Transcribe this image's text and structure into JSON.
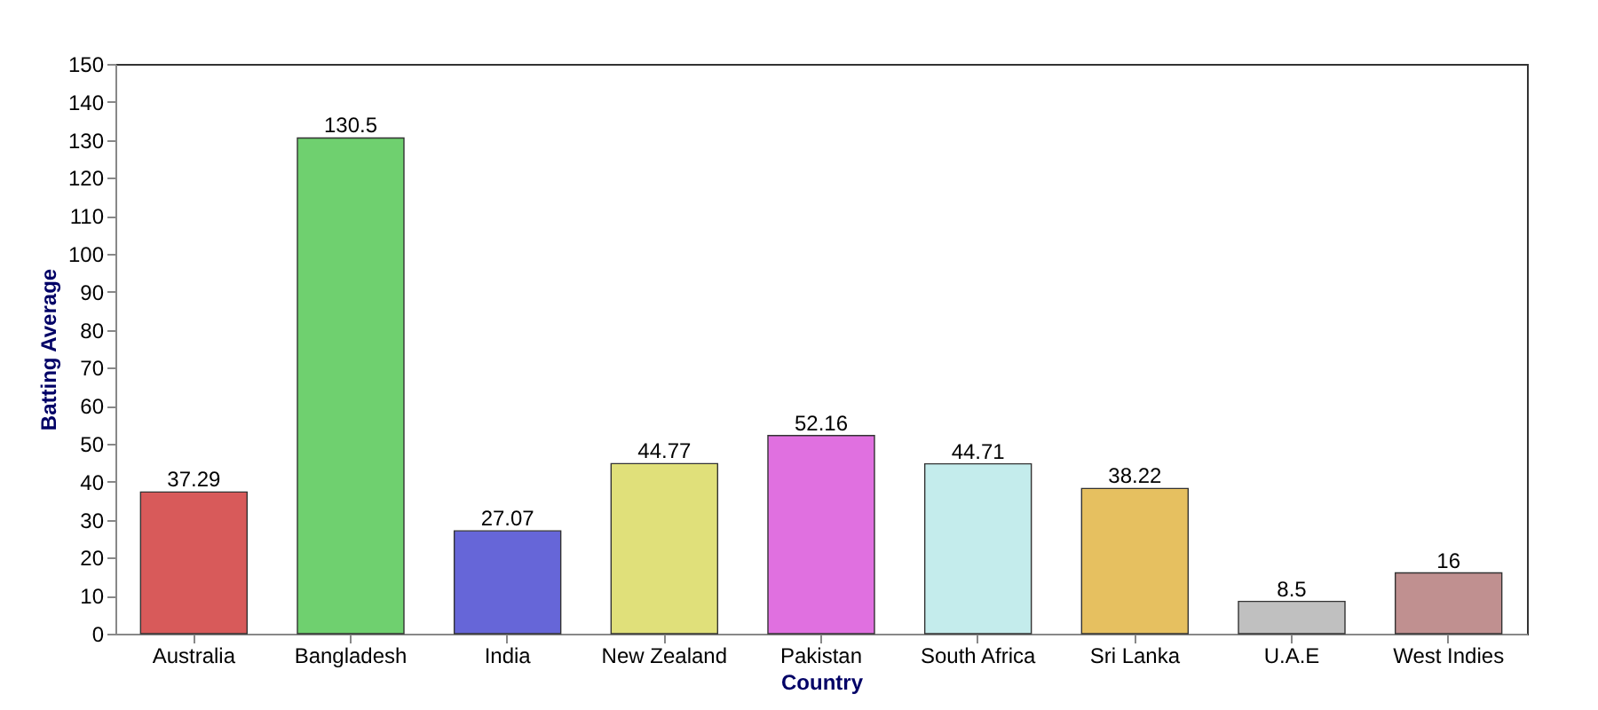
{
  "chart_data": {
    "type": "bar",
    "xlabel": "Country",
    "ylabel": "Batting Average",
    "categories": [
      "Australia",
      "Bangladesh",
      "India",
      "New Zealand",
      "Pakistan",
      "South Africa",
      "Sri Lanka",
      "U.A.E",
      "West Indies"
    ],
    "values": [
      37.29,
      130.5,
      27.07,
      44.77,
      52.16,
      44.71,
      38.22,
      8.5,
      16
    ],
    "colors": [
      "#d85a5a",
      "#6fd06f",
      "#6666d8",
      "#e0e07a",
      "#e070e0",
      "#c4ecec",
      "#e6c060",
      "#c0c0c0",
      "#c09090"
    ],
    "ylim": [
      0,
      150
    ],
    "yticks": [
      0,
      10,
      20,
      30,
      40,
      50,
      60,
      70,
      80,
      90,
      100,
      110,
      120,
      130,
      140,
      150
    ],
    "data_labels": true,
    "grid": false
  }
}
